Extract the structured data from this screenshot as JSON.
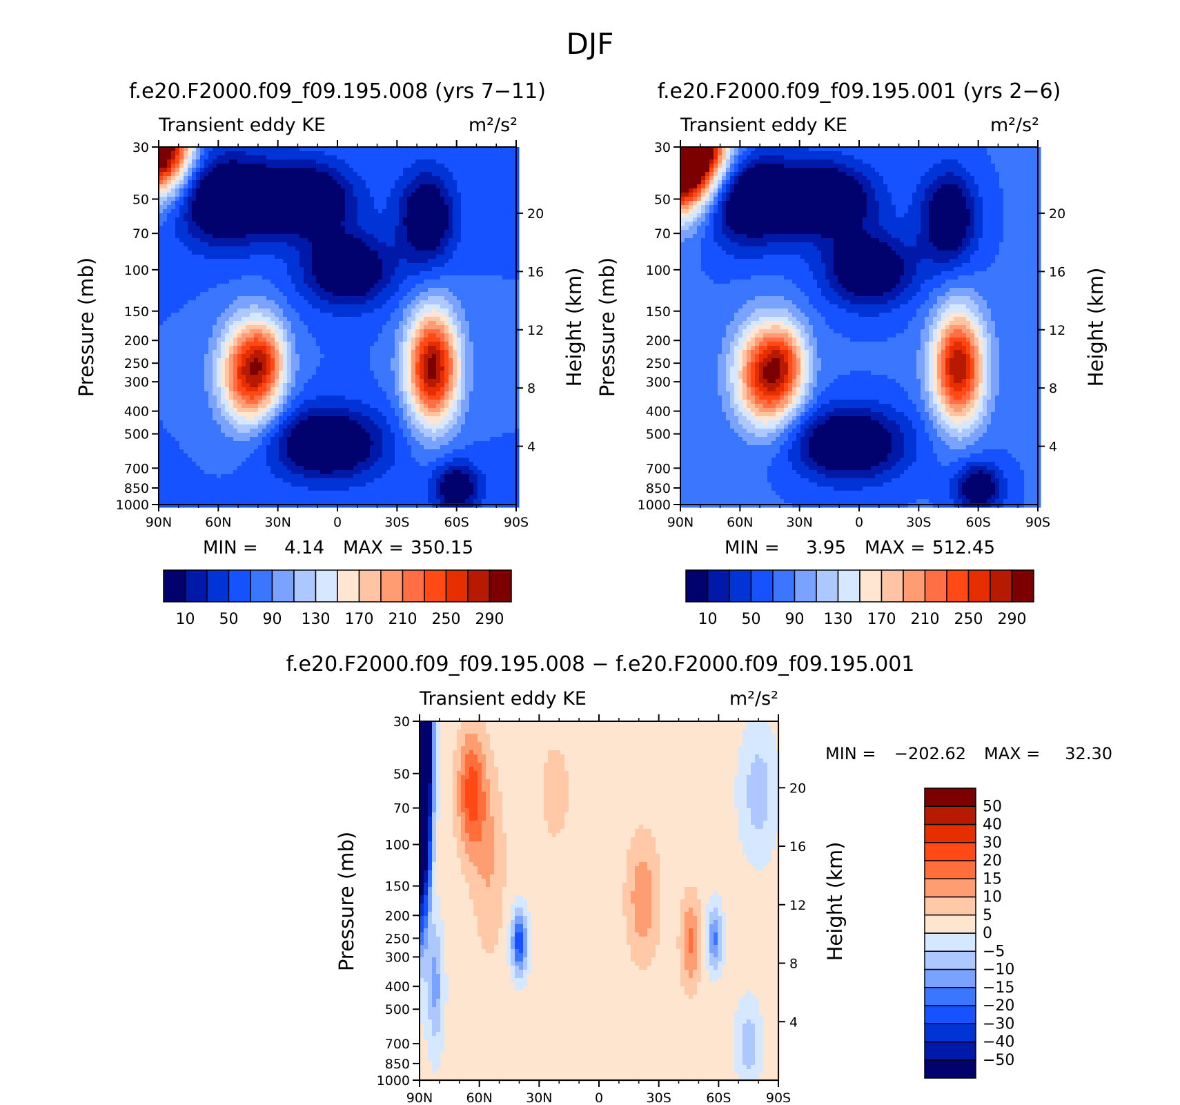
{
  "figure": {
    "title": "DJF"
  },
  "colormaps": {
    "abs": {
      "colors": [
        "#02026e",
        "#0019a8",
        "#0034d6",
        "#1652ff",
        "#3a76ff",
        "#7aa2ff",
        "#adc8ff",
        "#d6e8ff",
        "#ffe6d2",
        "#ffc4a4",
        "#ff9c73",
        "#ff6e45",
        "#ff4a16",
        "#e62e00",
        "#b71a00",
        "#7c0000"
      ],
      "levels": [
        10,
        30,
        50,
        70,
        90,
        110,
        130,
        150,
        170,
        190,
        210,
        230,
        250,
        270,
        290
      ],
      "tick_labels": [
        "10",
        "50",
        "90",
        "130",
        "170",
        "210",
        "250",
        "290"
      ]
    },
    "diff": {
      "colors": [
        "#02026e",
        "#0019a8",
        "#0034d6",
        "#1652ff",
        "#3a76ff",
        "#7aa2ff",
        "#adc8ff",
        "#d6e8ff",
        "#fde5cf",
        "#ffc8a6",
        "#ff9d72",
        "#ff6e3b",
        "#ff4a16",
        "#e62e00",
        "#b71a00",
        "#7c0000"
      ],
      "levels": [
        -50,
        -40,
        -30,
        -20,
        -15,
        -10,
        -5,
        0,
        5,
        10,
        15,
        20,
        30,
        40,
        50
      ],
      "tick_labels": [
        "50",
        "40",
        "30",
        "20",
        "15",
        "10",
        "5",
        "0",
        "−5",
        "−10",
        "−15",
        "−20",
        "−30",
        "−40",
        "−50"
      ]
    }
  },
  "chart_data": [
    {
      "type": "heatmap",
      "title": "f.e20.F2000.f09_f09.195.008 (yrs 7−11)",
      "subtitle_left": "Transient eddy KE",
      "units": "m²/s²",
      "ylabel": "Pressure (mb)",
      "ylabel_right": "Height (km)",
      "x_tick_labels": [
        "90N",
        "60N",
        "30N",
        "0",
        "30S",
        "60S",
        "90S"
      ],
      "x_tick_values": [
        90,
        60,
        30,
        0,
        -30,
        -60,
        -90
      ],
      "y_tick_labels": [
        "30",
        "50",
        "70",
        "100",
        "150",
        "200",
        "250",
        "300",
        "400",
        "500",
        "700",
        "850",
        "1000"
      ],
      "y_tick_values": [
        30,
        50,
        70,
        100,
        150,
        200,
        250,
        300,
        400,
        500,
        700,
        850,
        1000
      ],
      "y_scale": "log",
      "height_tick_labels": [
        "20",
        "16",
        "12",
        "8",
        "4"
      ],
      "height_tick_values": [
        20,
        16,
        12,
        8,
        4
      ],
      "stats": {
        "min_label": "MIN =",
        "min": "4.14",
        "max_label": "MAX =",
        "max": "350.15"
      },
      "colormap": "abs",
      "features": [
        {
          "lat": 58,
          "p": 50,
          "value": -45
        },
        {
          "lat": 18,
          "p": 50,
          "value": -55
        },
        {
          "lat": -5,
          "p": 100,
          "value": -40
        },
        {
          "lat": -45,
          "p": 60,
          "value": -35
        },
        {
          "lat": 5,
          "p": 550,
          "value": -45
        },
        {
          "lat": -60,
          "p": 850,
          "value": -25
        },
        {
          "lat": 90,
          "p": 30,
          "value": 360
        },
        {
          "lat": 44,
          "p": 275,
          "value": 270
        },
        {
          "lat": 35,
          "p": 230,
          "value": 130
        },
        {
          "lat": -48,
          "p": 260,
          "value": 300
        }
      ],
      "feature_shape": [
        {
          "slat": 24,
          "sp": 0.45
        },
        {
          "slat": 25,
          "sp": 0.35
        },
        {
          "slat": 22,
          "sp": 0.35
        },
        {
          "slat": 14,
          "sp": 0.45
        },
        {
          "slat": 28,
          "sp": 0.35
        },
        {
          "slat": 12,
          "sp": 0.25
        },
        {
          "slat": 16,
          "sp": 0.45
        },
        {
          "slat": 15,
          "sp": 0.5
        },
        {
          "slat": 10,
          "sp": 0.35
        },
        {
          "slat": 13,
          "sp": 0.55
        }
      ],
      "background": 70
    },
    {
      "type": "heatmap",
      "title": "f.e20.F2000.f09_f09.195.001 (yrs 2−6)",
      "subtitle_left": "Transient eddy KE",
      "units": "m²/s²",
      "ylabel": "Pressure (mb)",
      "ylabel_right": "Height (km)",
      "x_tick_labels": [
        "90N",
        "60N",
        "30N",
        "0",
        "30S",
        "60S",
        "90S"
      ],
      "x_tick_values": [
        90,
        60,
        30,
        0,
        -30,
        -60,
        -90
      ],
      "y_tick_labels": [
        "30",
        "50",
        "70",
        "100",
        "150",
        "200",
        "250",
        "300",
        "400",
        "500",
        "700",
        "850",
        "1000"
      ],
      "y_tick_values": [
        30,
        50,
        70,
        100,
        150,
        200,
        250,
        300,
        400,
        500,
        700,
        850,
        1000
      ],
      "y_scale": "log",
      "height_tick_labels": [
        "20",
        "16",
        "12",
        "8",
        "4"
      ],
      "height_tick_values": [
        20,
        16,
        12,
        8,
        4
      ],
      "stats": {
        "min_label": "MIN =",
        "min": "3.95",
        "max_label": "MAX =",
        "max": "512.45"
      },
      "colormap": "abs",
      "features": [
        {
          "lat": 58,
          "p": 50,
          "value": -45
        },
        {
          "lat": 18,
          "p": 50,
          "value": -55
        },
        {
          "lat": -5,
          "p": 100,
          "value": -40
        },
        {
          "lat": -45,
          "p": 60,
          "value": -35
        },
        {
          "lat": 5,
          "p": 550,
          "value": -45
        },
        {
          "lat": -60,
          "p": 850,
          "value": -25
        },
        {
          "lat": 90,
          "p": 30,
          "value": 560
        },
        {
          "lat": 46,
          "p": 280,
          "value": 280
        },
        {
          "lat": 36,
          "p": 240,
          "value": 130
        },
        {
          "lat": -50,
          "p": 260,
          "value": 290
        }
      ],
      "feature_shape": [
        {
          "slat": 24,
          "sp": 0.45
        },
        {
          "slat": 25,
          "sp": 0.35
        },
        {
          "slat": 22,
          "sp": 0.35
        },
        {
          "slat": 14,
          "sp": 0.45
        },
        {
          "slat": 28,
          "sp": 0.35
        },
        {
          "slat": 12,
          "sp": 0.25
        },
        {
          "slat": 20,
          "sp": 0.55
        },
        {
          "slat": 16,
          "sp": 0.5
        },
        {
          "slat": 10,
          "sp": 0.35
        },
        {
          "slat": 13,
          "sp": 0.55
        }
      ],
      "background": 72
    },
    {
      "type": "heatmap",
      "title": "f.e20.F2000.f09_f09.195.008 − f.e20.F2000.f09_f09.195.001",
      "subtitle_left": "Transient eddy KE",
      "units": "m²/s²",
      "ylabel": "Pressure (mb)",
      "ylabel_right": "Height (km)",
      "x_tick_labels": [
        "90N",
        "60N",
        "30N",
        "0",
        "30S",
        "60S",
        "90S"
      ],
      "x_tick_values": [
        90,
        60,
        30,
        0,
        -30,
        -60,
        -90
      ],
      "y_tick_labels": [
        "30",
        "50",
        "70",
        "100",
        "150",
        "200",
        "250",
        "300",
        "400",
        "500",
        "700",
        "850",
        "1000"
      ],
      "y_tick_values": [
        30,
        50,
        70,
        100,
        150,
        200,
        250,
        300,
        400,
        500,
        700,
        850,
        1000
      ],
      "y_scale": "log",
      "height_tick_labels": [
        "20",
        "16",
        "12",
        "8",
        "4"
      ],
      "height_tick_values": [
        20,
        16,
        12,
        8,
        4
      ],
      "stats": {
        "min_label": "MIN =",
        "min": "−202.62",
        "max_label": "MAX =",
        "max": "32.30"
      },
      "colormap": "diff",
      "features": [
        {
          "lat": 90,
          "p": 40,
          "value": -210
        },
        {
          "lat": 64,
          "p": 60,
          "value": 22
        },
        {
          "lat": 55,
          "p": 120,
          "value": 10
        },
        {
          "lat": 40,
          "p": 260,
          "value": -24
        },
        {
          "lat": 22,
          "p": 60,
          "value": 6
        },
        {
          "lat": -22,
          "p": 170,
          "value": 14
        },
        {
          "lat": -46,
          "p": 260,
          "value": 16
        },
        {
          "lat": -58,
          "p": 250,
          "value": -16
        },
        {
          "lat": -80,
          "p": 60,
          "value": -8
        },
        {
          "lat": -75,
          "p": 700,
          "value": -8
        },
        {
          "lat": 82,
          "p": 400,
          "value": -12
        }
      ],
      "feature_shape": [
        {
          "slat": 4.5,
          "sp": 1.2
        },
        {
          "slat": 7,
          "sp": 0.6
        },
        {
          "slat": 8,
          "sp": 0.9
        },
        {
          "slat": 4,
          "sp": 0.3
        },
        {
          "slat": 12,
          "sp": 0.8
        },
        {
          "slat": 8,
          "sp": 0.6
        },
        {
          "slat": 5,
          "sp": 0.45
        },
        {
          "slat": 4,
          "sp": 0.3
        },
        {
          "slat": 9,
          "sp": 0.6
        },
        {
          "slat": 6,
          "sp": 0.4
        },
        {
          "slat": 4,
          "sp": 0.6
        }
      ],
      "background": 2
    }
  ]
}
